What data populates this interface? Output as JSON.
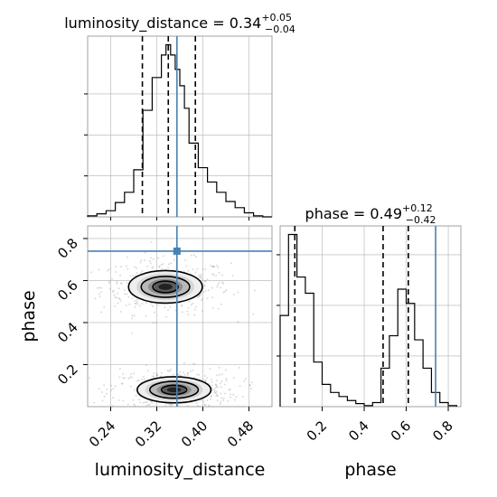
{
  "chart_data": {
    "type": "corner",
    "parameters": [
      "luminosity_distance",
      "phase"
    ],
    "truth": {
      "luminosity_distance": 0.355,
      "phase": 0.74
    },
    "colors": {
      "truth": "#4682b4",
      "histogram": "#000000",
      "grid": "#b0b0b0",
      "quantile": "#000000"
    },
    "luminosity_distance": {
      "title_prefix": "luminosity_distance = ",
      "median": "0.34",
      "plus": "+0.05",
      "minus": "−0.04",
      "quantiles": [
        0.295,
        0.34,
        0.387
      ],
      "range": [
        0.2,
        0.52
      ],
      "ticks": [
        0.24,
        0.32,
        0.4,
        0.48
      ],
      "tick_labels": [
        "0.24",
        "0.32",
        "0.40",
        "0.48"
      ],
      "xlabel": "luminosity_distance",
      "hist": {
        "edges": [
          0.2,
          0.216,
          0.232,
          0.248,
          0.264,
          0.28,
          0.296,
          0.312,
          0.328,
          0.336,
          0.344,
          0.352,
          0.36,
          0.368,
          0.376,
          0.392,
          0.408,
          0.424,
          0.44,
          0.456,
          0.472,
          0.488,
          0.504,
          0.52
        ],
        "counts": [
          0.5,
          1.5,
          3.0,
          7.0,
          12.0,
          23.0,
          52.0,
          68.0,
          79.0,
          84.0,
          79.0,
          72.0,
          64.0,
          53.0,
          36.0,
          24.0,
          17.0,
          12.0,
          7.5,
          4.5,
          2.0,
          0.5,
          0.0
        ]
      }
    },
    "phase": {
      "title_prefix": "phase = ",
      "median": "0.49",
      "plus": "+0.12",
      "minus": "−0.42",
      "quantiles": [
        0.07,
        0.49,
        0.61
      ],
      "range": [
        0.0,
        0.86
      ],
      "ticks": [
        0.2,
        0.4,
        0.6,
        0.8
      ],
      "tick_labels": [
        "0.2",
        "0.4",
        "0.6",
        "0.8"
      ],
      "xlabel": "phase",
      "ylabel": "phase",
      "hist": {
        "edges": [
          0.0,
          0.04,
          0.08,
          0.12,
          0.16,
          0.2,
          0.24,
          0.28,
          0.32,
          0.36,
          0.4,
          0.44,
          0.48,
          0.52,
          0.56,
          0.6,
          0.64,
          0.68,
          0.72,
          0.76,
          0.8,
          0.84
        ],
        "counts": [
          45,
          85,
          64,
          56,
          22,
          11,
          7,
          5,
          3,
          1.5,
          0.5,
          2,
          19,
          35,
          58,
          51,
          33,
          19,
          7,
          2,
          0.5
        ]
      }
    },
    "joint": {
      "clusters": [
        {
          "ld_center": 0.335,
          "phase_center": 0.57,
          "ld_sigma": 0.04,
          "phase_sigma": 0.05
        },
        {
          "ld_center": 0.35,
          "phase_center": 0.08,
          "ld_sigma": 0.04,
          "phase_sigma": 0.04
        }
      ],
      "contour_levels": [
        {
          "ld_sigma_scale": 0.55,
          "phase_sigma_scale": 0.55
        },
        {
          "ld_sigma_scale": 1.05,
          "phase_sigma_scale": 1.0
        },
        {
          "ld_sigma_scale": 1.6,
          "phase_sigma_scale": 1.55
        }
      ]
    }
  }
}
